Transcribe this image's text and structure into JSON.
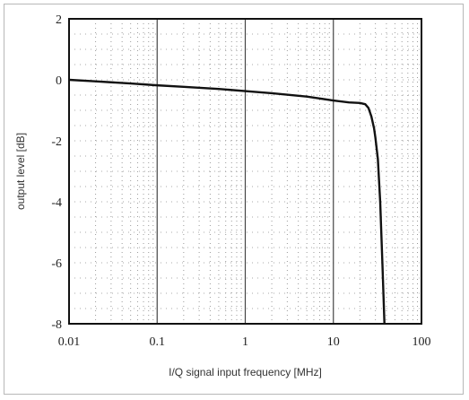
{
  "chart_data": {
    "type": "line",
    "xlabel": "I/Q signal input frequency [MHz]",
    "ylabel": "output level [dB]",
    "x_scale": "log",
    "xlim": [
      0.01,
      100
    ],
    "ylim": [
      -8,
      2
    ],
    "x_ticks": [
      0.01,
      0.1,
      1,
      10,
      100
    ],
    "x_tick_labels": [
      "0.01",
      "0.1",
      "1",
      "10",
      "100"
    ],
    "y_ticks": [
      2,
      0,
      -2,
      -4,
      -6,
      -8
    ],
    "y_tick_labels": [
      "2",
      "0",
      "-2",
      "-4",
      "-6",
      "-8"
    ],
    "grid": "major solid vertical, minor dotted",
    "series": [
      {
        "x": [
          0.01,
          0.02,
          0.05,
          0.1,
          0.2,
          0.5,
          1,
          2,
          5,
          10,
          15,
          20,
          23,
          25,
          27,
          29,
          30,
          32,
          34,
          36,
          38
        ],
        "y": [
          0.0,
          -0.05,
          -0.12,
          -0.18,
          -0.23,
          -0.3,
          -0.37,
          -0.44,
          -0.55,
          -0.68,
          -0.74,
          -0.76,
          -0.8,
          -0.92,
          -1.2,
          -1.6,
          -1.9,
          -2.6,
          -4.0,
          -6.0,
          -8.0
        ],
        "color": "#111111"
      }
    ]
  }
}
